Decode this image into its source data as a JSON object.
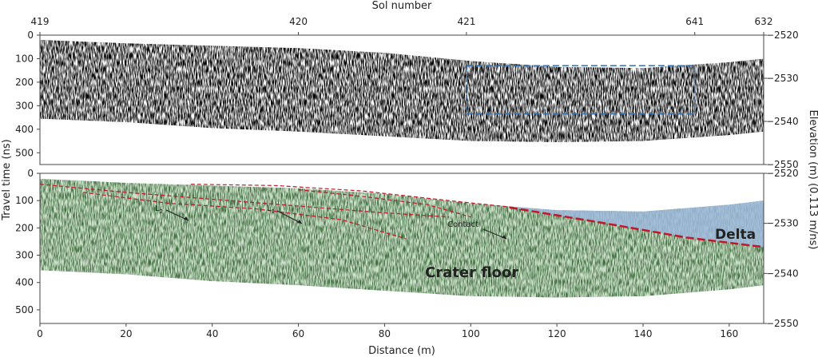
{
  "chart_data": [
    {
      "type": "heatmap",
      "panel": "top",
      "x_top_label": "Sol number",
      "x_top_ticks": [
        {
          "distance": 0,
          "label": "419"
        },
        {
          "distance": 60,
          "label": "420"
        },
        {
          "distance": 99,
          "label": "421"
        },
        {
          "distance": 152,
          "label": "641"
        },
        {
          "distance": 168,
          "label": "632"
        }
      ],
      "ylim": [
        0,
        550
      ],
      "yticks": [
        0,
        100,
        200,
        300,
        400,
        500
      ],
      "y2lim": [
        -2520,
        -2550
      ],
      "y2ticks": [
        -2520,
        -2530,
        -2540,
        -2550
      ],
      "xlim": [
        0,
        168
      ],
      "highlight_box": {
        "x0": 99,
        "x1": 152,
        "y0": 130,
        "y1": 335,
        "color": "#3b6fa8"
      },
      "surface_profile": {
        "x": [
          0,
          20,
          40,
          60,
          80,
          100,
          120,
          140,
          160,
          168
        ],
        "top": [
          20,
          35,
          45,
          55,
          75,
          110,
          135,
          140,
          115,
          100
        ],
        "bottom": [
          355,
          370,
          395,
          410,
          430,
          450,
          455,
          450,
          425,
          410
        ]
      }
    },
    {
      "type": "heatmap",
      "panel": "bottom",
      "xlabel": "Distance (m)",
      "xticks": [
        0,
        20,
        40,
        60,
        80,
        100,
        120,
        140,
        160
      ],
      "xlim": [
        0,
        168
      ],
      "ylim": [
        0,
        550
      ],
      "yticks": [
        0,
        100,
        200,
        300,
        400,
        500
      ],
      "y2lim": [
        -2520,
        -2550
      ],
      "y2ticks": [
        -2520,
        -2530,
        -2540,
        -2550
      ],
      "regions": [
        {
          "name": "Crater floor",
          "color": "#cfe3cc"
        },
        {
          "name": "Delta",
          "color": "#9db8dc"
        }
      ],
      "contact_line": {
        "name": "Contact",
        "color": "#c0182a",
        "x": [
          109,
          130,
          150,
          168
        ],
        "y": [
          125,
          180,
          235,
          270
        ]
      },
      "reflectors": [
        {
          "name": "L2",
          "x": [
            0,
            20,
            40,
            60,
            80,
            95
          ],
          "y": [
            40,
            70,
            95,
            120,
            145,
            160
          ]
        },
        {
          "name": "L1",
          "x": [
            35,
            55,
            75,
            95,
            110
          ],
          "y": [
            40,
            45,
            65,
            100,
            125
          ]
        },
        {
          "name": "",
          "x": [
            10,
            30,
            50,
            70,
            85
          ],
          "y": [
            70,
            110,
            130,
            170,
            240
          ]
        },
        {
          "name": "",
          "x": [
            60,
            75,
            90,
            100
          ],
          "y": [
            60,
            85,
            115,
            160
          ]
        }
      ],
      "annotations": [
        {
          "text": "L2",
          "target_x": 35,
          "target_y": 45
        },
        {
          "text": "L1",
          "target_x": 60,
          "target_y": 45
        },
        {
          "text": "Contact",
          "target_x": 109,
          "target_y": 125
        }
      ]
    }
  ],
  "labels": {
    "sol_number": "Sol number",
    "distance": "Distance (m)",
    "travel_time": "Travel time (ns)",
    "elevation": "Elevation (m) (0.113 m/ns)",
    "contact": "Contact",
    "delta": "Delta",
    "crater_floor": "Crater floor",
    "L1_main": "L",
    "L1_sub": "1",
    "L2_main": "L",
    "L2_sub": "2"
  }
}
